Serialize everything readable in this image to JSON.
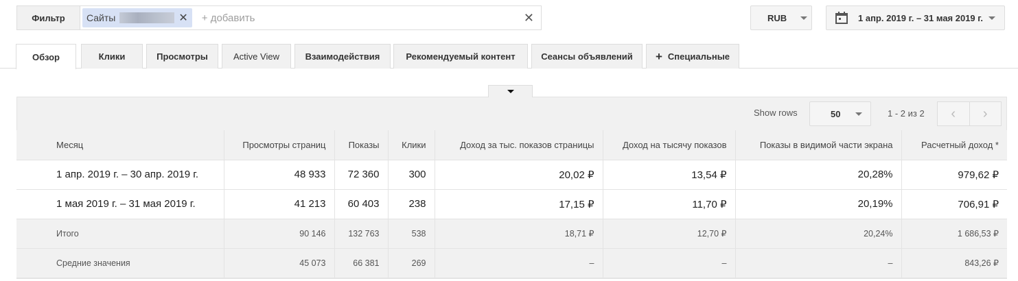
{
  "filter": {
    "label": "Фильтр",
    "chip": "Сайты",
    "add_placeholder": "+ добавить"
  },
  "currency": "RUB",
  "date_range": "1 апр. 2019 г. – 31 мая 2019 г.",
  "tabs": [
    {
      "label": "Обзор",
      "active": true
    },
    {
      "label": "Клики"
    },
    {
      "label": "Просмотры"
    },
    {
      "label": "Active View"
    },
    {
      "label": "Взаимодействия"
    },
    {
      "label": "Рекомендуемый контент"
    },
    {
      "label": "Сеансы объявлений"
    },
    {
      "label": "Специальные"
    }
  ],
  "toolbar": {
    "show_rows_label": "Show rows",
    "rows_value": "50",
    "pagination": "1 - 2 из 2"
  },
  "table": {
    "headers": [
      "Месяц",
      "Просмотры страниц",
      "Показы",
      "Клики",
      "Доход за тыс. показов страницы",
      "Доход на тысячу показов",
      "Показы в видимой части экрана",
      "Расчетный доход *"
    ],
    "rows": [
      [
        "1 апр. 2019 г. – 30 апр. 2019 г.",
        "48 933",
        "72 360",
        "300",
        "20,02 ₽",
        "13,54 ₽",
        "20,28%",
        "979,62 ₽"
      ],
      [
        "1 мая 2019 г. – 31 мая 2019 г.",
        "41 213",
        "60 403",
        "238",
        "17,15 ₽",
        "11,70 ₽",
        "20,19%",
        "706,91 ₽"
      ]
    ],
    "totals": [
      "Итого",
      "90 146",
      "132 763",
      "538",
      "18,71 ₽",
      "12,70 ₽",
      "20,24%",
      "1 686,53 ₽"
    ],
    "averages": [
      "Средние значения",
      "45 073",
      "66 381",
      "269",
      "–",
      "–",
      "–",
      "843,26 ₽"
    ]
  }
}
